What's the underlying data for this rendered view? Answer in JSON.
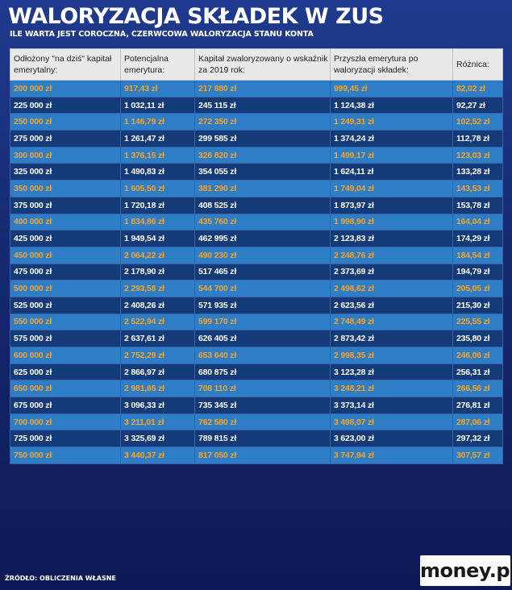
{
  "header": {
    "title": "WALORYZACJA SKŁADEK W ZUS",
    "subtitle": "ILE WARTA JEST COROCZNA, CZERWCOWA WALORYZACJA STANU KONTA"
  },
  "table": {
    "columns": [
      "Odłożony \"na dziś\" kapitał emerytalny:",
      "Potencjalna emerytura:",
      "Kapitał zwaloryzowany o wskaźnik za 2019 rok:",
      "Przyszła emerytura po waloryzacji składek:",
      "Różnica:"
    ],
    "rows": [
      [
        "200 000  zł",
        "917,43  zł",
        "217 880  zł",
        "999,45  zł",
        "82,02  zł"
      ],
      [
        "225 000  zł",
        "1 032,11  zł",
        "245 115  zł",
        "1 124,38  zł",
        "92,27  zł"
      ],
      [
        "250 000  zł",
        "1 146,79  zł",
        "272 350  zł",
        "1 249,31  zł",
        "102,52  zł"
      ],
      [
        "275 000  zł",
        "1 261,47  zł",
        "299 585  zł",
        "1 374,24  zł",
        "112,78  zł"
      ],
      [
        "300 000  zł",
        "1 376,15  zł",
        "326 820  zł",
        "1 499,17  zł",
        "123,03  zł"
      ],
      [
        "325 000  zł",
        "1 490,83  zł",
        "354 055  zł",
        "1 624,11  zł",
        "133,28  zł"
      ],
      [
        "350 000  zł",
        "1 605,50  zł",
        "381 290  zł",
        "1 749,04  zł",
        "143,53  zł"
      ],
      [
        "375 000  zł",
        "1 720,18  zł",
        "408 525  zł",
        "1 873,97  zł",
        "153,78  zł"
      ],
      [
        "400 000  zł",
        "1 834,86  zł",
        "435 760  zł",
        "1 998,90  zł",
        "164,04  zł"
      ],
      [
        "425 000  zł",
        "1 949,54  zł",
        "462 995  zł",
        "2 123,83  zł",
        "174,29  zł"
      ],
      [
        "450 000  zł",
        "2 064,22  zł",
        "490 230  zł",
        "2 248,76  zł",
        "184,54  zł"
      ],
      [
        "475 000  zł",
        "2 178,90  zł",
        "517 465  zł",
        "2 373,69  zł",
        "194,79  zł"
      ],
      [
        "500 000  zł",
        "2 293,58  zł",
        "544 700  zł",
        "2 498,62  zł",
        "205,05  zł"
      ],
      [
        "525 000  zł",
        "2 408,26  zł",
        "571 935  zł",
        "2 623,56  zł",
        "215,30  zł"
      ],
      [
        "550 000  zł",
        "2 522,94  zł",
        "599 170  zł",
        "2 748,49  zł",
        "225,55  zł"
      ],
      [
        "575 000  zł",
        "2 637,61  zł",
        "626 405  zł",
        "2 873,42  zł",
        "235,80  zł"
      ],
      [
        "600 000  zł",
        "2 752,29  zł",
        "653 640  zł",
        "2 998,35  zł",
        "246,06  zł"
      ],
      [
        "625 000  zł",
        "2 866,97  zł",
        "680 875  zł",
        "3 123,28  zł",
        "256,31  zł"
      ],
      [
        "650 000  zł",
        "2 981,65  zł",
        "708 110  zł",
        "3 248,21  zł",
        "266,56  zł"
      ],
      [
        "675 000  zł",
        "3 096,33  zł",
        "735 345  zł",
        "3 373,14  zł",
        "276,81  zł"
      ],
      [
        "700 000  zł",
        "3 211,01  zł",
        "762 580  zł",
        "3 498,07  zł",
        "287,06  zł"
      ],
      [
        "725 000  zł",
        "3 325,69  zł",
        "789 815  zł",
        "3 623,00  zł",
        "297,32  zł"
      ],
      [
        "750 000  zł",
        "3 440,37  zł",
        "817 050  zł",
        "3 747,94  zł",
        "307,57  zł"
      ]
    ]
  },
  "footer": {
    "source": "ŹRÓDŁO: OBLICZENIA WŁASNE",
    "logo_text": "money.pl"
  },
  "colors": {
    "highlight_text": "#f5a32c",
    "row_light": "#2d7ec6",
    "row_dark": "#143a78"
  }
}
